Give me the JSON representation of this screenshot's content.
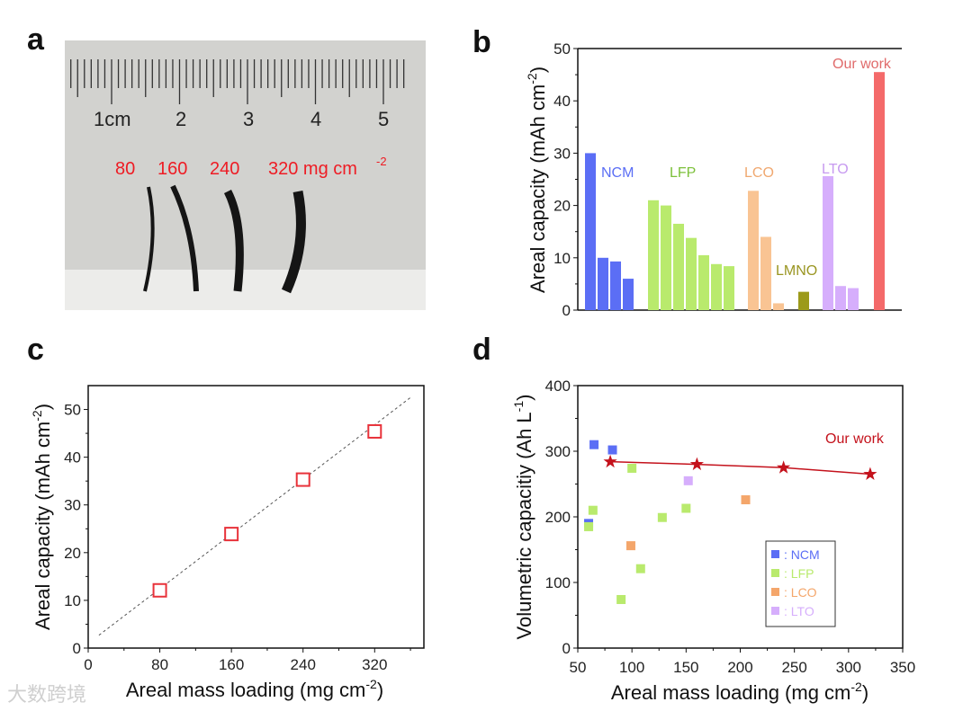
{
  "panel_labels": [
    "a",
    "b",
    "c",
    "d"
  ],
  "photo": {
    "ruler_labels": [
      "1cm",
      "2",
      "3",
      "4",
      "5"
    ],
    "sample_labels": [
      "80",
      "160",
      "240",
      "320 mg cm",
      "-2"
    ]
  },
  "watermark": "大数跨境",
  "chart_data": [
    {
      "panel": "b",
      "type": "bar",
      "ylabel": "Areal capacity (mAh cm",
      "ylabel_sup": "-2",
      "ylabel_close": ")",
      "ylim": [
        0,
        50
      ],
      "yticks": [
        0,
        10,
        20,
        30,
        40,
        50
      ],
      "groups": [
        {
          "name": "NCM",
          "color": "#5b6ef5",
          "values": [
            30,
            10,
            9.3,
            6
          ]
        },
        {
          "name": "LFP",
          "color": "#b9ea6d",
          "label_color": "#7cc03a",
          "values": [
            21,
            20,
            16.5,
            13.8,
            10.5,
            8.8,
            8.4
          ]
        },
        {
          "name": "LCO",
          "color": "#f9c493",
          "label_color": "#f0a870",
          "values": [
            22.8,
            14,
            1.3
          ]
        },
        {
          "name": "LMNO",
          "color": "#9c9a1a",
          "label_color": "#9a9622",
          "values": [
            3.5
          ]
        },
        {
          "name": "LTO",
          "color": "#d6aefc",
          "label_color": "#c79af0",
          "values": [
            25.6,
            4.6,
            4.2
          ]
        },
        {
          "name": "Our work",
          "color": "#f46a6a",
          "label_color": "#e06a6a",
          "values": [
            45.5
          ]
        }
      ]
    },
    {
      "panel": "c",
      "type": "scatter",
      "xlabel": "Areal mass loading (mg cm",
      "xlabel_sup": "-2",
      "xlabel_close": ")",
      "ylabel": "Areal capacity (mAh cm",
      "ylabel_sup": "-2",
      "ylabel_close": ")",
      "xlim": [
        0,
        375
      ],
      "ylim": [
        0,
        55
      ],
      "xticks": [
        0,
        80,
        160,
        240,
        320
      ],
      "yticks": [
        0,
        10,
        20,
        30,
        40,
        50
      ],
      "points": [
        {
          "x": 80,
          "y": 12.1
        },
        {
          "x": 160,
          "y": 23.9
        },
        {
          "x": 240,
          "y": 35.3
        },
        {
          "x": 320,
          "y": 45.4
        }
      ],
      "fit_line": [
        {
          "x": 12,
          "y": 2.7
        },
        {
          "x": 360,
          "y": 52.5
        }
      ],
      "marker_color": "#e8323a"
    },
    {
      "panel": "d",
      "type": "scatter",
      "xlabel": "Areal mass loading (mg cm",
      "xlabel_sup": "-2",
      "xlabel_close": ")",
      "ylabel": "Volumetric capacitiy (Ah L",
      "ylabel_sup": "-1",
      "ylabel_close": ")",
      "xlim": [
        50,
        350
      ],
      "ylim": [
        0,
        400
      ],
      "xticks": [
        50,
        100,
        150,
        200,
        250,
        300,
        350
      ],
      "yticks": [
        0,
        100,
        200,
        300,
        400
      ],
      "series": [
        {
          "name": ": NCM",
          "color": "#5b6ef5",
          "points": [
            {
              "x": 60,
              "y": 190
            },
            {
              "x": 65,
              "y": 310
            },
            {
              "x": 82,
              "y": 302
            }
          ]
        },
        {
          "name": ": LFP",
          "color": "#b9ea6d",
          "points": [
            {
              "x": 60,
              "y": 185
            },
            {
              "x": 64,
              "y": 210
            },
            {
              "x": 90,
              "y": 74
            },
            {
              "x": 100,
              "y": 274
            },
            {
              "x": 108,
              "y": 121
            },
            {
              "x": 128,
              "y": 199
            },
            {
              "x": 150,
              "y": 213
            }
          ]
        },
        {
          "name": ": LCO",
          "color": "#f4a66b",
          "points": [
            {
              "x": 99,
              "y": 156
            },
            {
              "x": 205,
              "y": 226
            }
          ]
        },
        {
          "name": ": LTO",
          "color": "#d6aefc",
          "points": [
            {
              "x": 152,
              "y": 255
            }
          ]
        }
      ],
      "our_work": {
        "name": "Our work",
        "color": "#c4121c",
        "points": [
          {
            "x": 80,
            "y": 284
          },
          {
            "x": 160,
            "y": 280
          },
          {
            "x": 240,
            "y": 275
          },
          {
            "x": 320,
            "y": 265
          }
        ]
      },
      "legend_position": "bottom-right"
    }
  ]
}
